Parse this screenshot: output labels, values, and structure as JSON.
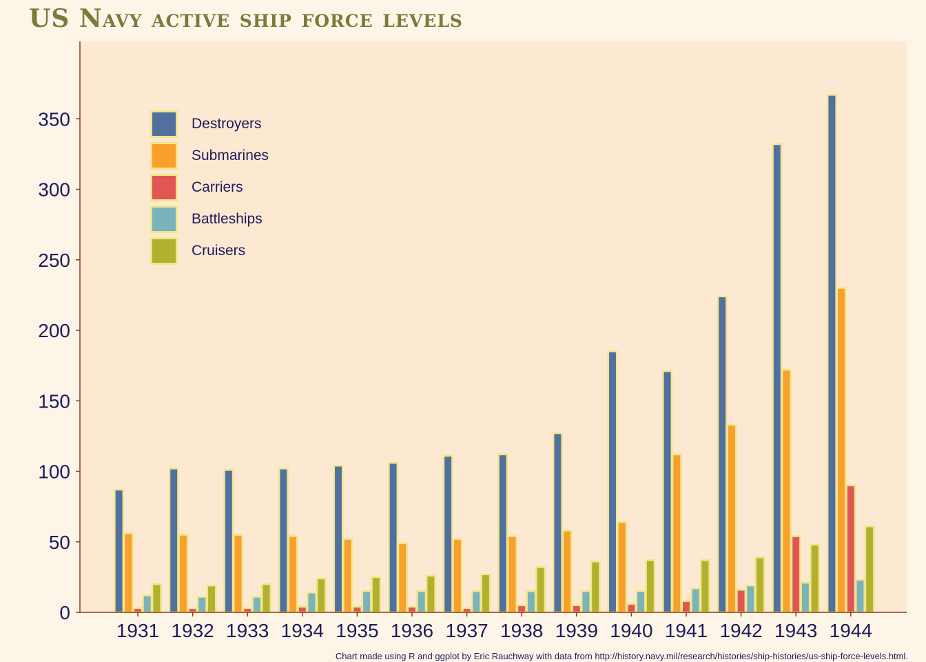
{
  "chart_data": {
    "type": "bar",
    "title": "US Navy active ship force levels",
    "xlabel": "",
    "ylabel": "",
    "ylim": [
      0,
      400
    ],
    "yticks": [
      0,
      50,
      100,
      150,
      200,
      250,
      300,
      350
    ],
    "categories": [
      "1931",
      "1932",
      "1933",
      "1934",
      "1935",
      "1936",
      "1937",
      "1938",
      "1939",
      "1940",
      "1941",
      "1942",
      "1943",
      "1944"
    ],
    "series": [
      {
        "name": "Destroyers",
        "color": "#5170a0",
        "values": [
          87,
          102,
          101,
          102,
          104,
          106,
          111,
          112,
          127,
          185,
          171,
          224,
          332,
          367
        ]
      },
      {
        "name": "Submarines",
        "color": "#f8a02b",
        "values": [
          56,
          55,
          55,
          54,
          52,
          49,
          52,
          54,
          58,
          64,
          112,
          133,
          172,
          230
        ]
      },
      {
        "name": "Carriers",
        "color": "#e15655",
        "values": [
          3,
          3,
          3,
          4,
          4,
          4,
          3,
          5,
          5,
          6,
          8,
          16,
          54,
          90
        ]
      },
      {
        "name": "Battleships",
        "color": "#7ab3bb",
        "values": [
          12,
          11,
          11,
          14,
          15,
          15,
          15,
          15,
          15,
          15,
          17,
          19,
          21,
          23
        ]
      },
      {
        "name": "Cruisers",
        "color": "#b4b02f",
        "values": [
          20,
          19,
          20,
          24,
          25,
          26,
          27,
          32,
          36,
          37,
          37,
          39,
          48,
          61
        ]
      }
    ],
    "legend_position": "top-left",
    "grid": false,
    "colors": {
      "panel": "#fde9d2",
      "axis": "#8b3a1a",
      "bar_outline": "#f0e68c",
      "text": "#1f1a5c"
    }
  },
  "caption": "Chart made using R and ggplot by Eric Rauchway with data from http://history.navy.mil/research/histories/ship-histories/us-ship-force-levels.html."
}
